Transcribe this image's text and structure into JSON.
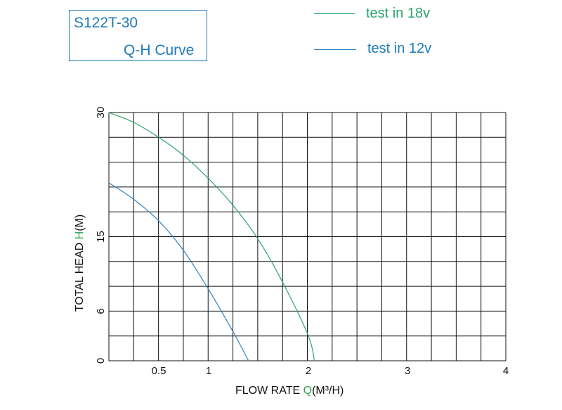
{
  "header": {
    "model": "S122T-30",
    "subtitle": "Q-H Curve"
  },
  "colors": {
    "series_18v": "#2aa36c",
    "series_12v": "#2e83c4",
    "frame": "#1f7bb8",
    "grid": "#111111",
    "axis_highlight": "#2aa04b"
  },
  "chart_data": {
    "type": "line",
    "xlabel_prefix": "FLOW RATE",
    "xlabel_var": "Q",
    "xlabel_unit": "(M³/H)",
    "ylabel_prefix": "TOTAL HEAD",
    "ylabel_var": "H",
    "ylabel_unit": "(M)",
    "x_ticks": [
      "0.5",
      "1",
      "2",
      "3",
      "4"
    ],
    "x_tick_values": [
      0.5,
      1,
      2,
      3,
      4
    ],
    "y_ticks": [
      "0",
      "6",
      "15",
      "30"
    ],
    "y_tick_values": [
      0,
      6,
      15,
      30
    ],
    "xlim": [
      0,
      4
    ],
    "ylim": [
      0,
      30
    ],
    "grid": true,
    "series": [
      {
        "name": "test in 18v",
        "x": [
          0,
          0.25,
          0.5,
          0.75,
          1.0,
          1.25,
          1.5,
          1.75,
          2.0,
          2.06
        ],
        "y": [
          30,
          28.8,
          27.0,
          24.8,
          22.0,
          18.7,
          14.6,
          9.3,
          3.0,
          0
        ]
      },
      {
        "name": "test in 12v",
        "x": [
          0,
          0.25,
          0.5,
          0.75,
          1.0,
          1.25,
          1.4
        ],
        "y": [
          21.5,
          19.5,
          16.9,
          13.3,
          8.6,
          3.4,
          0
        ]
      }
    ]
  },
  "legend": [
    {
      "label_word": "test in",
      "label_num": "18v"
    },
    {
      "label_word": "test in",
      "label_num": "12v"
    }
  ]
}
